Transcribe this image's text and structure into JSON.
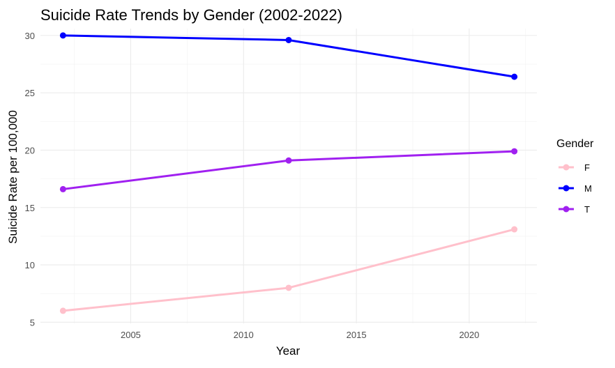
{
  "chart_data": {
    "type": "line",
    "title": "Suicide Rate Trends by Gender (2002-2022)",
    "xlabel": "Year",
    "ylabel": "Suicide Rate per 100,000",
    "x": [
      2002,
      2012,
      2022
    ],
    "xlim": [
      2001,
      2023
    ],
    "ylim": [
      4.9,
      30.6
    ],
    "x_ticks": [
      2005,
      2010,
      2015,
      2020
    ],
    "y_ticks": [
      5,
      10,
      15,
      20,
      25,
      30
    ],
    "grid": true,
    "legend": {
      "title": "Gender",
      "position": "right"
    },
    "series": [
      {
        "name": "F",
        "color": "#FFC0CB",
        "values": [
          6.0,
          8.0,
          13.1
        ]
      },
      {
        "name": "M",
        "color": "#0000FF",
        "values": [
          30.0,
          29.6,
          26.4
        ]
      },
      {
        "name": "T",
        "color": "#A020F0",
        "values": [
          16.6,
          19.1,
          19.9
        ]
      }
    ]
  }
}
